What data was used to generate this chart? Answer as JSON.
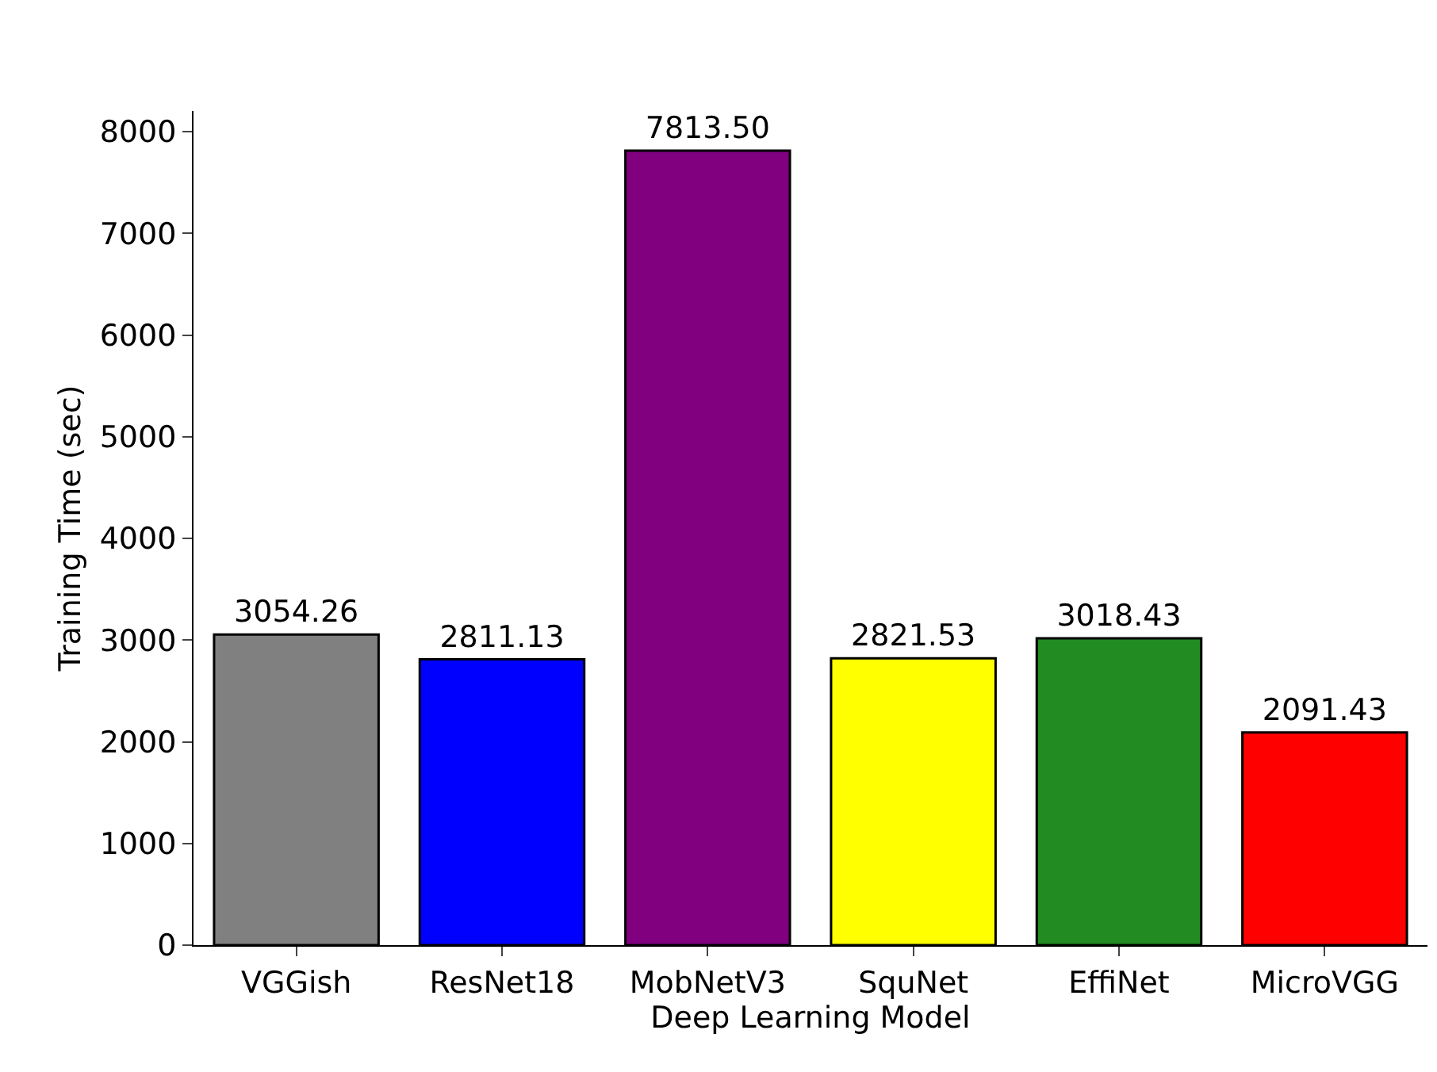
{
  "chart_data": {
    "type": "bar",
    "xlabel": "Deep Learning Model",
    "ylabel": "Training Time (sec)",
    "categories": [
      "VGGish",
      "ResNet18",
      "MobNetV3",
      "SquNet",
      "EffiNet",
      "MicroVGG"
    ],
    "values": [
      3054.26,
      2811.13,
      7813.5,
      2821.53,
      3018.43,
      2091.43
    ],
    "value_labels": [
      "3054.26",
      "2811.13",
      "7813.50",
      "2821.53",
      "3018.43",
      "2091.43"
    ],
    "colors": [
      "#808080",
      "#0000ff",
      "#800080",
      "#ffff00",
      "#228b22",
      "#ff0000"
    ],
    "ylim": [
      0,
      8204
    ],
    "yticks": [
      0,
      1000,
      2000,
      3000,
      4000,
      5000,
      6000,
      7000,
      8000
    ]
  }
}
